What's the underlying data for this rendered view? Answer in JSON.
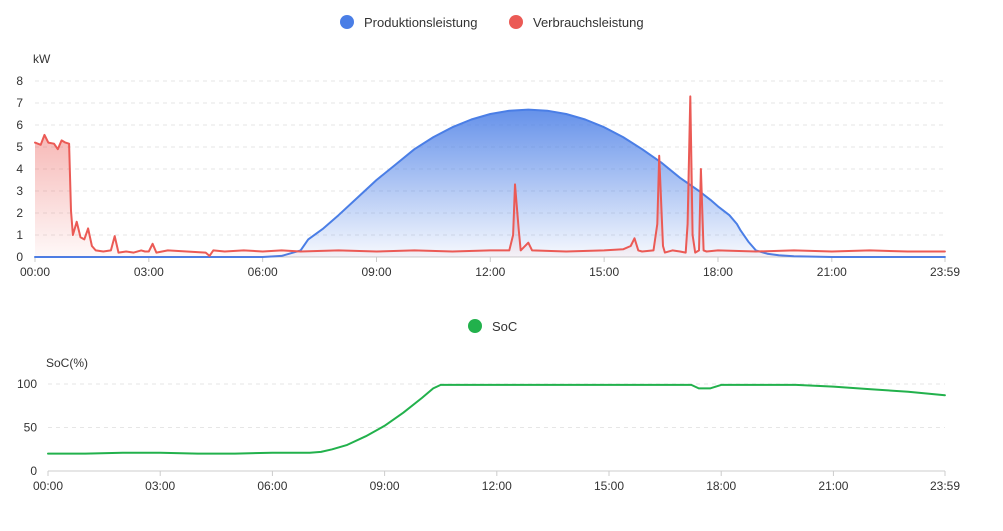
{
  "colors": {
    "production": "#4a7ee6",
    "consumption": "#eb5a55",
    "soc": "#22b14c",
    "grid": "#e6e6e6",
    "text": "#333333"
  },
  "chart_data": [
    {
      "type": "area",
      "legend": [
        "Produktionsleistung",
        "Verbrauchsleistung"
      ],
      "ylabel": "kW",
      "ylim": [
        0,
        8
      ],
      "yticks": [
        0,
        1,
        2,
        3,
        4,
        5,
        6,
        7,
        8
      ],
      "xlim": [
        "00:00",
        "23:59"
      ],
      "xticks": [
        "00:00",
        "03:00",
        "06:00",
        "09:00",
        "12:00",
        "15:00",
        "18:00",
        "21:00",
        "23:59"
      ],
      "legend_position": "top-center",
      "grid": true,
      "series": [
        {
          "name": "Produktionsleistung",
          "points": [
            [
              0,
              0
            ],
            [
              6,
              0
            ],
            [
              6.5,
              0.05
            ],
            [
              7,
              0.3
            ],
            [
              7.2,
              0.8
            ],
            [
              7.6,
              1.3
            ],
            [
              8,
              1.9
            ],
            [
              8.5,
              2.7
            ],
            [
              9,
              3.5
            ],
            [
              9.5,
              4.2
            ],
            [
              10,
              4.9
            ],
            [
              10.5,
              5.45
            ],
            [
              11,
              5.9
            ],
            [
              11.5,
              6.25
            ],
            [
              12,
              6.5
            ],
            [
              12.5,
              6.65
            ],
            [
              13,
              6.7
            ],
            [
              13.5,
              6.65
            ],
            [
              14,
              6.5
            ],
            [
              14.5,
              6.25
            ],
            [
              15,
              5.9
            ],
            [
              15.5,
              5.45
            ],
            [
              16,
              4.9
            ],
            [
              16.5,
              4.3
            ],
            [
              17,
              3.6
            ],
            [
              17.5,
              3.0
            ],
            [
              17.8,
              2.6
            ],
            [
              18,
              2.3
            ],
            [
              18.3,
              1.9
            ],
            [
              18.5,
              1.5
            ],
            [
              18.6,
              1.2
            ],
            [
              18.8,
              0.7
            ],
            [
              19,
              0.3
            ],
            [
              19.3,
              0.15
            ],
            [
              19.6,
              0.08
            ],
            [
              20,
              0.03
            ],
            [
              21,
              0
            ],
            [
              23.98,
              0
            ]
          ]
        },
        {
          "name": "Verbrauchsleistung",
          "points": [
            [
              0,
              5.2
            ],
            [
              0.15,
              5.1
            ],
            [
              0.25,
              5.55
            ],
            [
              0.35,
              5.2
            ],
            [
              0.5,
              5.15
            ],
            [
              0.6,
              4.9
            ],
            [
              0.7,
              5.3
            ],
            [
              0.8,
              5.2
            ],
            [
              0.9,
              5.15
            ],
            [
              0.95,
              2.1
            ],
            [
              1.0,
              1.0
            ],
            [
              1.1,
              1.6
            ],
            [
              1.2,
              0.9
            ],
            [
              1.3,
              0.8
            ],
            [
              1.4,
              1.3
            ],
            [
              1.5,
              0.5
            ],
            [
              1.6,
              0.3
            ],
            [
              1.8,
              0.25
            ],
            [
              2.0,
              0.3
            ],
            [
              2.1,
              0.95
            ],
            [
              2.2,
              0.2
            ],
            [
              2.4,
              0.25
            ],
            [
              2.6,
              0.2
            ],
            [
              2.8,
              0.3
            ],
            [
              2.9,
              0.25
            ],
            [
              3.0,
              0.25
            ],
            [
              3.1,
              0.6
            ],
            [
              3.2,
              0.2
            ],
            [
              3.5,
              0.3
            ],
            [
              4.0,
              0.25
            ],
            [
              4.5,
              0.2
            ],
            [
              4.6,
              0.05
            ],
            [
              4.7,
              0.3
            ],
            [
              5.0,
              0.25
            ],
            [
              5.5,
              0.3
            ],
            [
              6.0,
              0.25
            ],
            [
              6.5,
              0.3
            ],
            [
              7.0,
              0.25
            ],
            [
              8.0,
              0.3
            ],
            [
              9.0,
              0.25
            ],
            [
              10.0,
              0.3
            ],
            [
              11.0,
              0.25
            ],
            [
              12.0,
              0.3
            ],
            [
              12.5,
              0.3
            ],
            [
              12.6,
              1.0
            ],
            [
              12.65,
              3.3
            ],
            [
              12.75,
              1.2
            ],
            [
              12.8,
              0.3
            ],
            [
              13.0,
              0.65
            ],
            [
              13.1,
              0.3
            ],
            [
              14.0,
              0.25
            ],
            [
              15.0,
              0.3
            ],
            [
              15.5,
              0.35
            ],
            [
              15.7,
              0.5
            ],
            [
              15.8,
              0.85
            ],
            [
              15.9,
              0.3
            ],
            [
              16.0,
              0.25
            ],
            [
              16.3,
              0.3
            ],
            [
              16.4,
              1.5
            ],
            [
              16.45,
              4.6
            ],
            [
              16.55,
              0.5
            ],
            [
              16.6,
              0.2
            ],
            [
              16.8,
              0.3
            ],
            [
              17.0,
              0.25
            ],
            [
              17.15,
              0.2
            ],
            [
              17.2,
              1.5
            ],
            [
              17.27,
              7.3
            ],
            [
              17.33,
              1.0
            ],
            [
              17.4,
              0.2
            ],
            [
              17.5,
              0.3
            ],
            [
              17.55,
              4.0
            ],
            [
              17.62,
              0.3
            ],
            [
              17.7,
              0.25
            ],
            [
              18.0,
              0.3
            ],
            [
              19.0,
              0.25
            ],
            [
              20.0,
              0.3
            ],
            [
              21.0,
              0.25
            ],
            [
              22.0,
              0.3
            ],
            [
              23.0,
              0.25
            ],
            [
              23.98,
              0.25
            ]
          ]
        }
      ]
    },
    {
      "type": "line",
      "legend": [
        "SoC"
      ],
      "ylabel": "SoC(%)",
      "ylim": [
        0,
        100
      ],
      "yticks": [
        0,
        50,
        100
      ],
      "xlim": [
        "00:00",
        "23:59"
      ],
      "xticks": [
        "00:00",
        "03:00",
        "06:00",
        "09:00",
        "12:00",
        "15:00",
        "18:00",
        "21:00",
        "23:59"
      ],
      "legend_position": "top-center",
      "grid": true,
      "series": [
        {
          "name": "SoC",
          "points": [
            [
              0,
              20
            ],
            [
              1,
              20
            ],
            [
              2,
              21
            ],
            [
              3,
              21
            ],
            [
              4,
              20
            ],
            [
              5,
              20
            ],
            [
              6,
              21
            ],
            [
              7,
              21
            ],
            [
              7.3,
              22
            ],
            [
              7.6,
              25
            ],
            [
              8,
              30
            ],
            [
              8.5,
              40
            ],
            [
              9,
              52
            ],
            [
              9.5,
              67
            ],
            [
              10,
              84
            ],
            [
              10.3,
              95
            ],
            [
              10.5,
              99
            ],
            [
              12,
              99
            ],
            [
              14,
              99
            ],
            [
              16,
              99
            ],
            [
              17.2,
              99
            ],
            [
              17.4,
              95
            ],
            [
              17.7,
              95
            ],
            [
              18,
              99
            ],
            [
              19,
              99
            ],
            [
              20,
              99
            ],
            [
              21,
              97
            ],
            [
              22,
              94
            ],
            [
              23,
              91
            ],
            [
              23.98,
              87
            ]
          ]
        }
      ]
    }
  ]
}
